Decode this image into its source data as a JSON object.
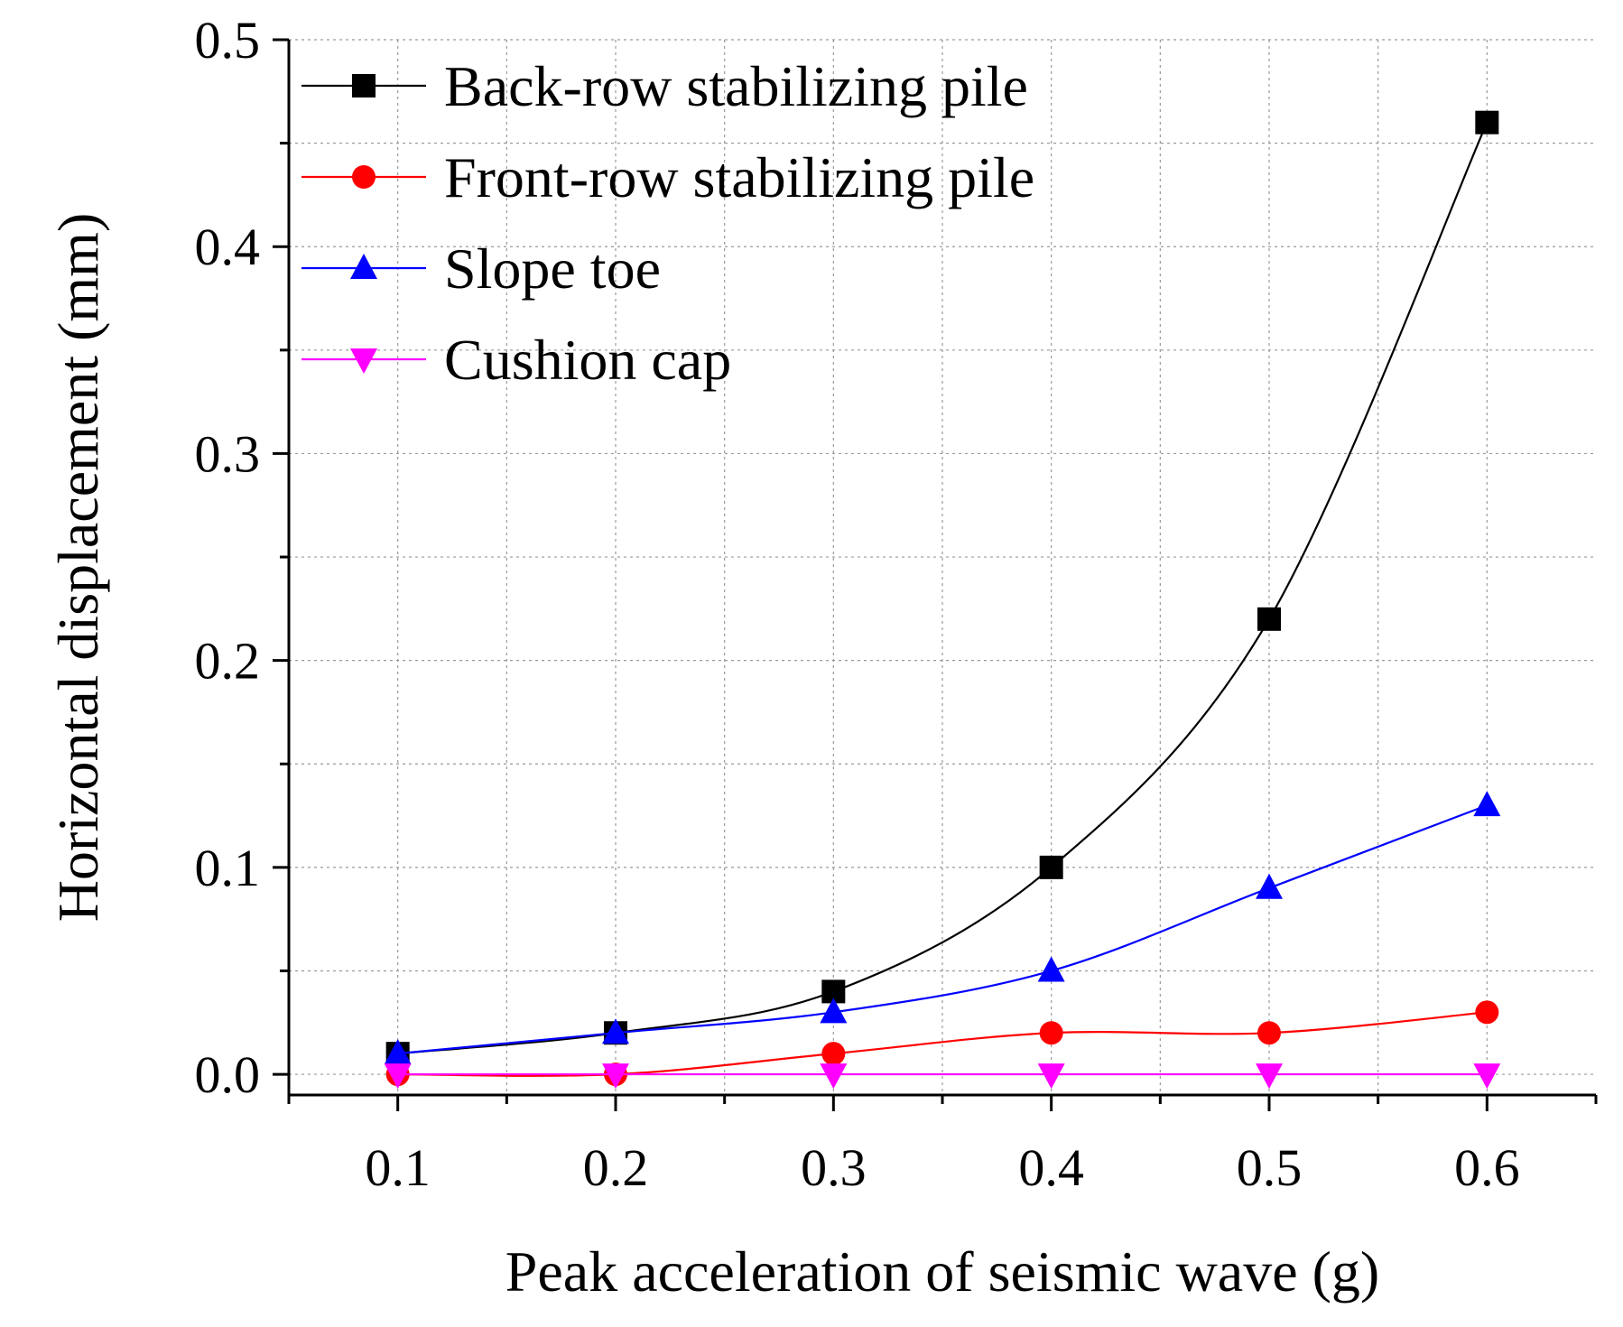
{
  "chart_data": {
    "type": "line",
    "title": "",
    "xlabel": "Peak acceleration of seismic wave (g)",
    "ylabel": "Horizontal displacement (mm)",
    "x": [
      0.1,
      0.2,
      0.3,
      0.4,
      0.5,
      0.6
    ],
    "xlim": [
      0.05,
      0.65
    ],
    "ylim": [
      -0.01,
      0.5
    ],
    "x_ticks": [
      "0.1",
      "0.2",
      "0.3",
      "0.4",
      "0.5",
      "0.6"
    ],
    "y_ticks": [
      "0.0",
      "0.1",
      "0.2",
      "0.3",
      "0.4",
      "0.5"
    ],
    "grid": true,
    "legend_position": "top-left",
    "series": [
      {
        "name": "Back-row stabilizing pile",
        "color": "#000000",
        "marker": "square",
        "values": [
          0.01,
          0.02,
          0.04,
          0.1,
          0.22,
          0.46
        ]
      },
      {
        "name": "Front-row stabilizing pile",
        "color": "#ff0000",
        "marker": "circle",
        "values": [
          0.0,
          0.0,
          0.01,
          0.02,
          0.02,
          0.03
        ]
      },
      {
        "name": "Slope toe",
        "color": "#0000ff",
        "marker": "triangle-up",
        "values": [
          0.01,
          0.02,
          0.03,
          0.05,
          0.09,
          0.13
        ]
      },
      {
        "name": "Cushion cap",
        "color": "#ff00ff",
        "marker": "triangle-down",
        "values": [
          0.0,
          0.0,
          0.0,
          0.0,
          0.0,
          0.0
        ]
      }
    ]
  }
}
